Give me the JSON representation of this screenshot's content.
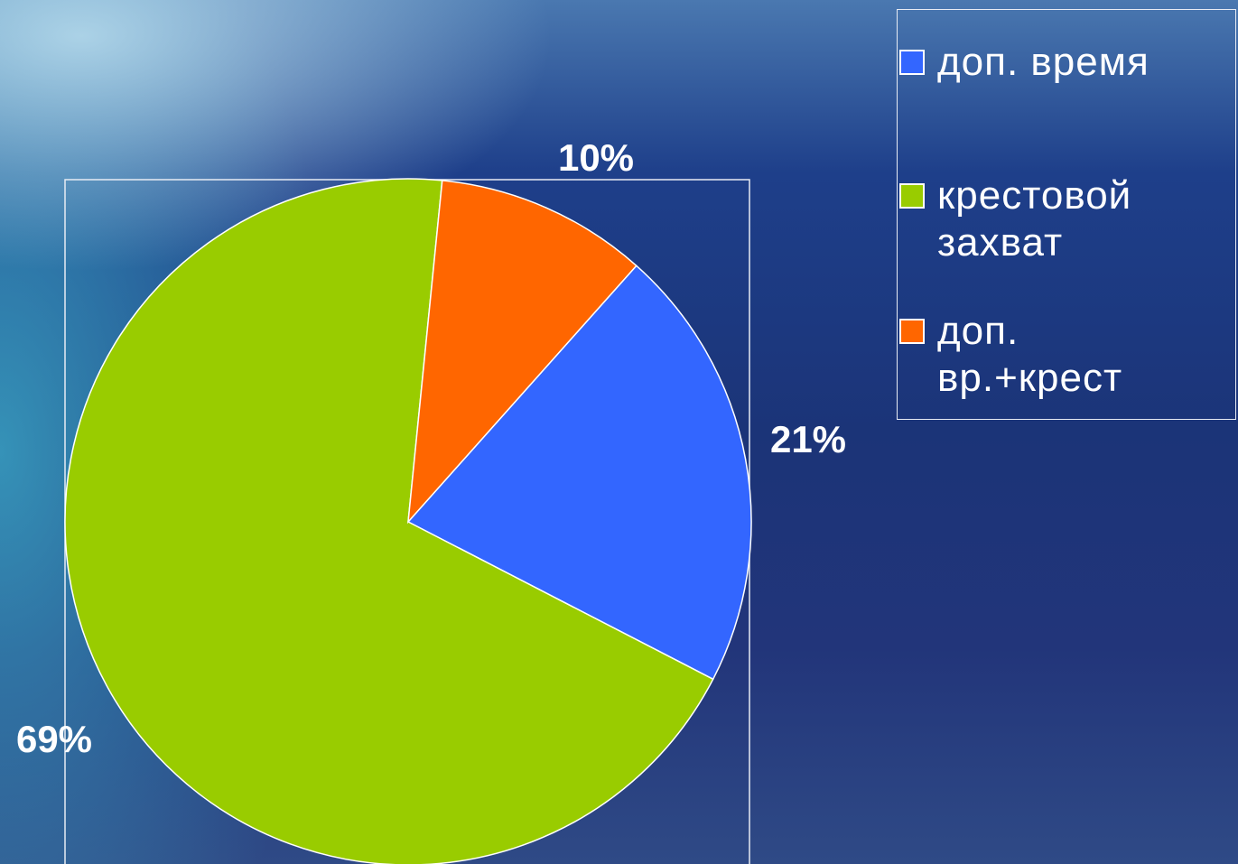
{
  "chart_data": {
    "type": "pie",
    "categories": [
      "доп. время",
      "крестовой захват",
      "доп. вр.+крест"
    ],
    "values": [
      21,
      69,
      10
    ],
    "value_labels": [
      "21%",
      "69%",
      "10%"
    ],
    "colors": [
      "#3366ff",
      "#99cc00",
      "#ff6600"
    ],
    "legend": "top-right"
  }
}
